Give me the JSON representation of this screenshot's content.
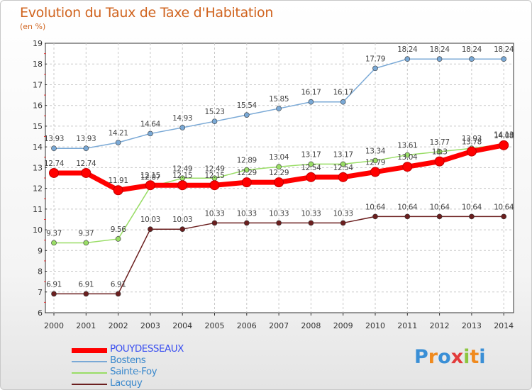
{
  "chart": {
    "title": "Evolution du Taux de Taxe d'Habitation",
    "unit_label": "(en %)"
  },
  "chart_data": {
    "type": "line",
    "title": "Evolution du Taux de Taxe d'Habitation",
    "xlabel": "",
    "ylabel": "(en %)",
    "ylim": [
      6,
      19
    ],
    "yticks": [
      "6",
      "7",
      "8",
      "9",
      "10",
      "11",
      "12",
      "13",
      "14",
      "15",
      "16",
      "17",
      "18",
      "19"
    ],
    "x": [
      "2000",
      "2001",
      "2002",
      "2003",
      "2004",
      "2005",
      "2006",
      "2007",
      "2008",
      "2009",
      "2010",
      "2011",
      "2012",
      "2013",
      "2014"
    ],
    "grid": true,
    "legend_position": "bottom-left",
    "series": [
      {
        "name": "POUYDESSEAUX",
        "color": "#ff0000",
        "values": [
          12.74,
          12.74,
          11.91,
          12.15,
          12.15,
          12.15,
          12.29,
          12.29,
          12.54,
          12.54,
          12.79,
          13.04,
          13.3,
          13.78,
          14.08
        ],
        "labels": [
          "12.74",
          "12.74",
          "11.91",
          "12.15",
          "12.15",
          "12.15",
          "12.29",
          "12.29",
          "12.54",
          "12.54",
          "12.79",
          "13.04",
          "13.3",
          "13.78",
          "14.08"
        ]
      },
      {
        "name": "Bostens",
        "color": "#7aa9d6",
        "values": [
          13.93,
          13.93,
          14.21,
          14.64,
          14.93,
          15.23,
          15.54,
          15.85,
          16.17,
          16.17,
          17.79,
          18.24,
          18.24,
          18.24,
          18.24
        ],
        "labels": [
          "13.93",
          "13.93",
          "14.21",
          "14.64",
          "14.93",
          "15.23",
          "15.54",
          "15.85",
          "16.17",
          "16.17",
          "17.79",
          "18.24",
          "18.24",
          "18.24",
          "18.24"
        ]
      },
      {
        "name": "Sainte-Foy",
        "color": "#99dd66",
        "values": [
          9.37,
          9.37,
          9.56,
          12.07,
          12.49,
          12.49,
          12.89,
          13.04,
          13.17,
          13.17,
          13.34,
          13.61,
          13.77,
          13.93,
          14.13
        ],
        "labels": [
          "9.37",
          "9.37",
          "9.56",
          "12.07",
          "12.49",
          "12.49",
          "12.89",
          "13.04",
          "13.17",
          "13.17",
          "13.34",
          "13.61",
          "13.77",
          "13.93",
          "14.13"
        ]
      },
      {
        "name": "Lacquy",
        "color": "#6b1f1f",
        "values": [
          6.91,
          6.91,
          6.91,
          10.03,
          10.03,
          10.33,
          10.33,
          10.33,
          10.33,
          10.33,
          10.64,
          10.64,
          10.64,
          10.64,
          10.64
        ],
        "labels": [
          "6.91",
          "6.91",
          "6.91",
          "10.03",
          "10.03",
          "10.33",
          "10.33",
          "10.33",
          "10.33",
          "10.33",
          "10.64",
          "10.64",
          "10.64",
          "10.64",
          "10.64"
        ]
      }
    ]
  },
  "logo": {
    "letters": [
      "P",
      "r",
      "o",
      "x",
      "i",
      "t",
      "i"
    ],
    "colors": [
      "#3a8fd6",
      "#f08a1e",
      "#3a8fd6",
      "#e23b3b",
      "#8cc63f",
      "#f08a1e",
      "#3a8fd6"
    ]
  }
}
